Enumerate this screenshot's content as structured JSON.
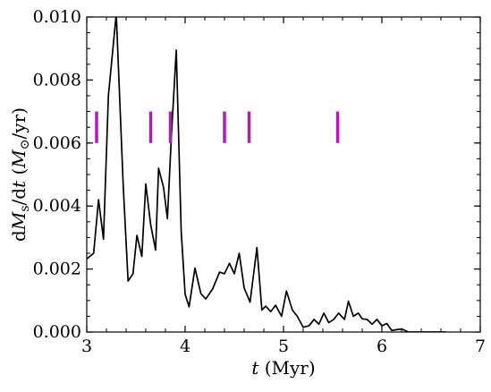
{
  "chart_data": {
    "type": "line",
    "title": "",
    "xlabel": "t (Myr)",
    "ylabel": "dMs/dt (M⊙/yr)",
    "xlim": [
      3,
      7
    ],
    "ylim": [
      0,
      0.01
    ],
    "grid": false,
    "xticks": [
      3,
      4,
      5,
      6,
      7
    ],
    "xtick_labels": [
      "3",
      "4",
      "5",
      "6",
      "7"
    ],
    "yticks": [
      0,
      0.002,
      0.004,
      0.006,
      0.008,
      0.01
    ],
    "ytick_labels": [
      "0.000",
      "0.002",
      "0.004",
      "0.006",
      "0.008",
      "0.010"
    ],
    "series": [
      {
        "color": "#000000",
        "x": [
          3.0,
          3.07,
          3.12,
          3.17,
          3.22,
          3.3,
          3.37,
          3.42,
          3.47,
          3.51,
          3.56,
          3.6,
          3.65,
          3.7,
          3.73,
          3.78,
          3.82,
          3.86,
          3.91,
          3.96,
          4.0,
          4.04,
          4.1,
          4.16,
          4.21,
          4.28,
          4.35,
          4.4,
          4.45,
          4.5,
          4.55,
          4.6,
          4.66,
          4.73,
          4.78,
          4.82,
          4.87,
          4.92,
          4.98,
          5.03,
          5.09,
          5.14,
          5.2,
          5.26,
          5.31,
          5.36,
          5.41,
          5.46,
          5.51,
          5.56,
          5.62,
          5.66,
          5.71,
          5.76,
          5.8,
          5.85,
          5.9,
          5.95,
          6.0,
          6.05,
          6.1,
          6.2,
          6.27,
          6.35,
          6.5,
          6.65
        ],
        "y": [
          0.00232,
          0.0025,
          0.0042,
          0.00295,
          0.0075,
          0.0101,
          0.0047,
          0.00162,
          0.00185,
          0.00307,
          0.0024,
          0.0047,
          0.0034,
          0.0026,
          0.0052,
          0.0046,
          0.0036,
          0.0062,
          0.00895,
          0.0032,
          0.0012,
          0.0008,
          0.00203,
          0.00122,
          0.00105,
          0.00137,
          0.0019,
          0.00185,
          0.00218,
          0.00185,
          0.0025,
          0.0014,
          0.00095,
          0.00268,
          0.0007,
          0.00082,
          0.00065,
          0.00085,
          0.0005,
          0.0013,
          0.0007,
          0.0005,
          0.00015,
          0.0002,
          0.0004,
          0.00025,
          0.0006,
          0.0003,
          0.0004,
          0.0006,
          0.0004,
          0.00098,
          0.0005,
          0.0006,
          0.00042,
          0.0004,
          0.00025,
          0.0004,
          0.0002,
          0.00027,
          5e-05,
          0.0001,
          0.0,
          0.0,
          0.0,
          0.0
        ]
      }
    ],
    "markers": {
      "color": "#b01cb6",
      "type": "vertical-tick",
      "x": [
        3.1,
        3.65,
        3.85,
        4.4,
        4.65,
        5.55
      ],
      "y_range": [
        0.006,
        0.007
      ]
    }
  }
}
